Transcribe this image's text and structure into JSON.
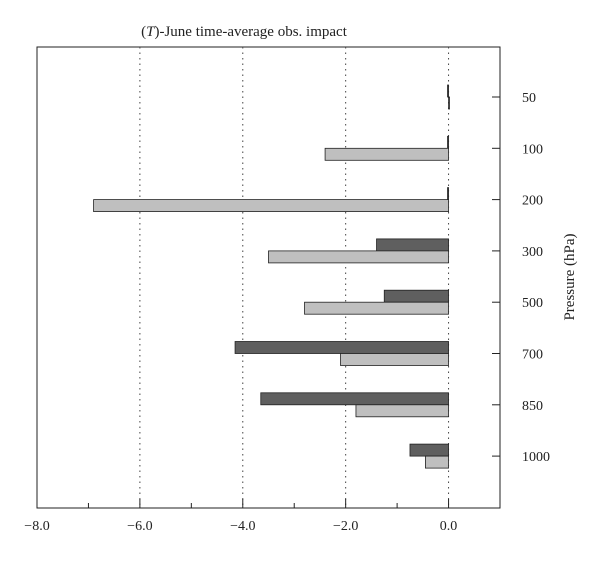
{
  "chart_data": {
    "type": "bar",
    "orientation": "horizontal",
    "title_prefix": "(",
    "title_italic": "T",
    "title_suffix": ")-June time-average obs. impact",
    "xlabel": "",
    "ylabel": "Pressure (hPa)",
    "xlim": [
      -8.0,
      1.0
    ],
    "xticks_major": [
      "−8.0",
      "−6.0",
      "−4.0",
      "−2.0",
      "0.0"
    ],
    "xticks_major_values": [
      -8.0,
      -6.0,
      -4.0,
      -2.0,
      0.0
    ],
    "xticks_minor_values": [
      -7.0,
      -5.0,
      -3.0,
      -1.0,
      1.0
    ],
    "gridlines_x": [
      -6.0,
      -4.0,
      -2.0,
      0.0
    ],
    "grid_style": "dotted vertical",
    "categories": [
      "50",
      "100",
      "200",
      "300",
      "500",
      "700",
      "850",
      "1000"
    ],
    "series": [
      {
        "color": "#5f5f5f",
        "values": [
          -0.02,
          -0.02,
          -0.02,
          -1.4,
          -1.25,
          -4.15,
          -3.65,
          -0.75
        ]
      },
      {
        "color": "#bfbfbf",
        "values": [
          0.0,
          -2.4,
          -6.9,
          -3.5,
          -2.8,
          -2.1,
          -1.8,
          -0.45
        ]
      }
    ]
  }
}
